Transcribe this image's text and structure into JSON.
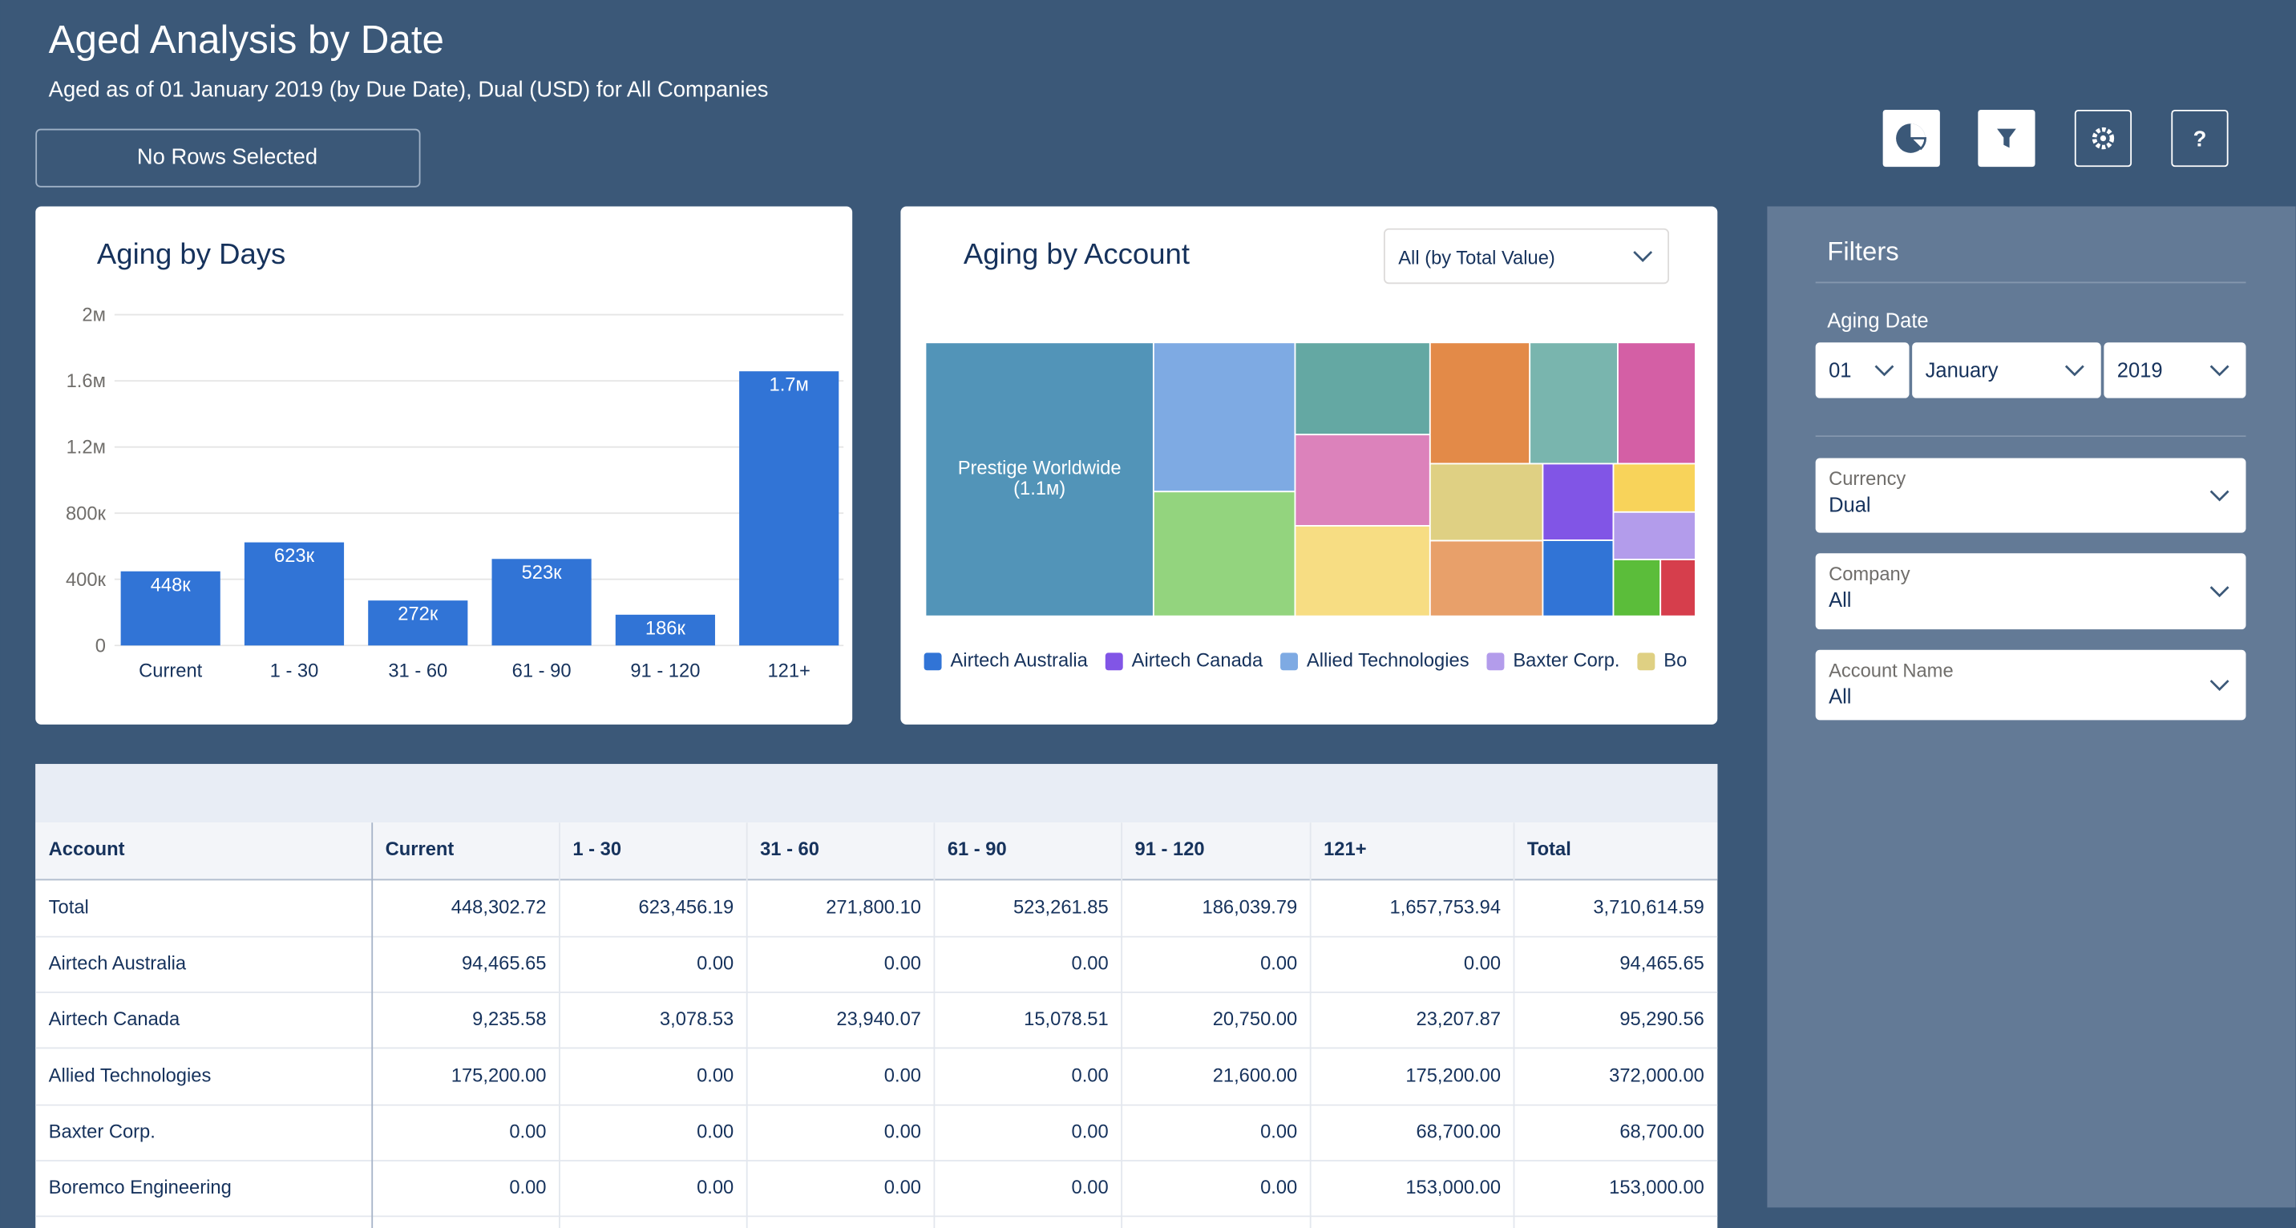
{
  "header": {
    "title": "Aged Analysis by Date",
    "subtitle": "Aged as of 01 January 2019 (by Due Date), Dual (USD) for All Companies",
    "selection": "No Rows Selected"
  },
  "toolbar": {
    "help": "?"
  },
  "chart_data": [
    {
      "type": "bar",
      "title": "Aging by Days",
      "categories": [
        "Current",
        "1 - 30",
        "31 - 60",
        "61 - 90",
        "91 - 120",
        "121+"
      ],
      "values": [
        448302.72,
        623456.19,
        271800.1,
        523261.85,
        186039.79,
        1657753.94
      ],
      "value_labels": [
        "448к",
        "623к",
        "272к",
        "523к",
        "186к",
        "1.7м"
      ],
      "color": "#3174d6",
      "ylim": [
        0,
        2000000
      ],
      "yticks": [
        0,
        {
          "value": 400000,
          "label": "400к"
        },
        {
          "value": 800000,
          "label": "800к"
        },
        {
          "value": 1200000,
          "label": "1.2м"
        },
        {
          "value": 1600000,
          "label": "1.6м"
        },
        {
          "value": 2000000,
          "label": "2м"
        }
      ],
      "grid": true
    },
    {
      "type": "treemap",
      "title": "Aging by Account",
      "dropdown": "All (by Total Value)",
      "labels": [
        "Prestige Worldwide",
        null,
        null,
        null,
        null,
        null,
        null,
        null,
        null,
        null,
        null,
        null,
        null,
        null,
        null,
        null,
        null
      ],
      "value_labels": [
        "(1.1м)",
        null,
        null,
        null,
        null,
        null,
        null,
        null,
        null,
        null,
        null,
        null,
        null,
        null,
        null,
        null,
        null
      ],
      "values": [
        1100000,
        372000,
        311000,
        219000,
        217000,
        215000,
        213000,
        188000,
        166000,
        153000,
        150000,
        95290.56,
        94465.65,
        70000,
        68700,
        47000,
        35000
      ],
      "colors": [
        "#5294b8",
        "#7eaae3",
        "#93d47e",
        "#64a8a3",
        "#dc82bb",
        "#f7dd83",
        "#e38a48",
        "#79b5ae",
        "#d45fa5",
        "#dfd083",
        "#e8a06a",
        "#8155e6",
        "#3174d6",
        "#f8d35a",
        "#b39ceb",
        "#5bbd3a",
        "#d63e4c"
      ],
      "legend": [
        {
          "name": "Airtech Australia",
          "color": "#3174d6"
        },
        {
          "name": "Airtech Canada",
          "color": "#8155e6"
        },
        {
          "name": "Allied Technologies",
          "color": "#7eaae3"
        },
        {
          "name": "Baxter Corp.",
          "color": "#b39ceb"
        },
        {
          "name": "Bo",
          "color": "#dfd083"
        }
      ]
    }
  ],
  "filters": {
    "title": "Filters",
    "aging_date": {
      "label": "Aging Date",
      "day": "01",
      "month": "January",
      "year": "2019"
    },
    "fields": [
      {
        "label": "Currency",
        "value": "Dual"
      },
      {
        "label": "Company",
        "value": "All"
      },
      {
        "label": "Account Name",
        "value": "All"
      }
    ]
  },
  "table": {
    "columns": [
      "Account",
      "Current",
      "1 - 30",
      "31 - 60",
      "61 - 90",
      "91 - 120",
      "121+",
      "Total"
    ],
    "rows": [
      [
        "Total",
        "448,302.72",
        "623,456.19",
        "271,800.10",
        "523,261.85",
        "186,039.79",
        "1,657,753.94",
        "3,710,614.59"
      ],
      [
        "Airtech Australia",
        "94,465.65",
        "0.00",
        "0.00",
        "0.00",
        "0.00",
        "0.00",
        "94,465.65"
      ],
      [
        "Airtech Canada",
        "9,235.58",
        "3,078.53",
        "23,940.07",
        "15,078.51",
        "20,750.00",
        "23,207.87",
        "95,290.56"
      ],
      [
        "Allied Technologies",
        "175,200.00",
        "0.00",
        "0.00",
        "0.00",
        "21,600.00",
        "175,200.00",
        "372,000.00"
      ],
      [
        "Baxter Corp.",
        "0.00",
        "0.00",
        "0.00",
        "0.00",
        "0.00",
        "68,700.00",
        "68,700.00"
      ],
      [
        "Boremco Engineering",
        "0.00",
        "0.00",
        "0.00",
        "0.00",
        "0.00",
        "153,000.00",
        "153,000.00"
      ]
    ]
  }
}
